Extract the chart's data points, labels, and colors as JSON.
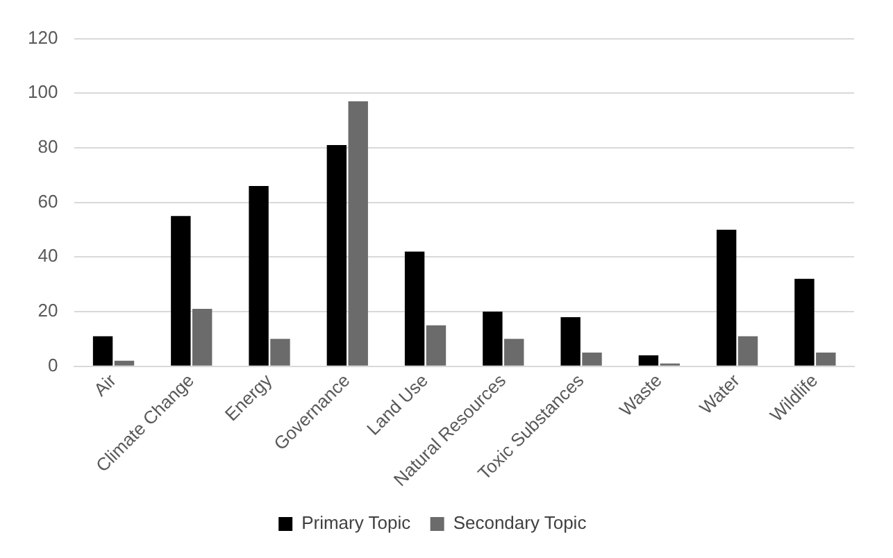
{
  "chart_data": {
    "type": "bar",
    "categories": [
      "Air",
      "Climate Change",
      "Energy",
      "Governance",
      "Land Use",
      "Natural Resources",
      "Toxic Substances",
      "Waste",
      "Water",
      "Wildlife"
    ],
    "series": [
      {
        "name": "Primary Topic",
        "color": "#000000",
        "values": [
          11,
          55,
          66,
          81,
          42,
          20,
          18,
          4,
          50,
          32
        ]
      },
      {
        "name": "Secondary Topic",
        "color": "#6b6b6b",
        "values": [
          2,
          21,
          10,
          97,
          15,
          10,
          5,
          1,
          11,
          5
        ]
      }
    ],
    "ylim": [
      0,
      120
    ],
    "yticks": [
      0,
      20,
      40,
      60,
      80,
      100,
      120
    ],
    "grid": "y",
    "legend": "bottom"
  }
}
